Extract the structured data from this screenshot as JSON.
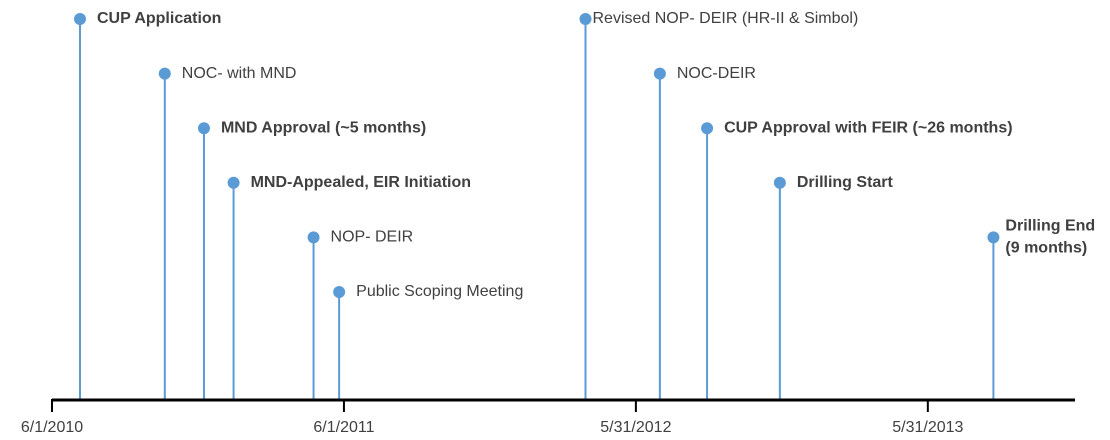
{
  "chart_data": {
    "type": "timeline",
    "color": "#5b9bd5",
    "xlim": [
      "6/1/2010",
      "12/1/2013"
    ],
    "xticks": [
      "6/1/2010",
      "6/1/2011",
      "5/31/2012",
      "5/31/2013"
    ],
    "events": [
      {
        "x": "7/6/2010",
        "lines": [
          "CUP Application"
        ],
        "bold": true
      },
      {
        "x": "10/20/2010",
        "lines": [
          "NOC- with MND"
        ],
        "bold": false
      },
      {
        "x": "12/8/2010",
        "lines": [
          "MND Approval (~5 months)"
        ],
        "bold": true
      },
      {
        "x": "1/14/2011",
        "lines": [
          "MND-Appealed, EIR Initiation"
        ],
        "bold": true
      },
      {
        "x": "4/24/2011",
        "lines": [
          "NOP- DEIR"
        ],
        "bold": false
      },
      {
        "x": "5/26/2011",
        "lines": [
          "Public Scoping Meeting"
        ],
        "bold": false
      },
      {
        "x": "3/29/2012",
        "lines": [
          "Revised NOP- DEIR (HR-II & Simbol)"
        ],
        "bold": false
      },
      {
        "x": "6/30/2012",
        "lines": [
          "NOC-DEIR"
        ],
        "bold": false
      },
      {
        "x": "8/28/2012",
        "lines": [
          "CUP Approval with FEIR (~26 months)"
        ],
        "bold": true
      },
      {
        "x": "11/27/2012",
        "lines": [
          "Drilling Start"
        ],
        "bold": true
      },
      {
        "x": "8/21/2013",
        "lines": [
          "Drilling End",
          "(9 months)"
        ],
        "bold": true
      }
    ]
  }
}
